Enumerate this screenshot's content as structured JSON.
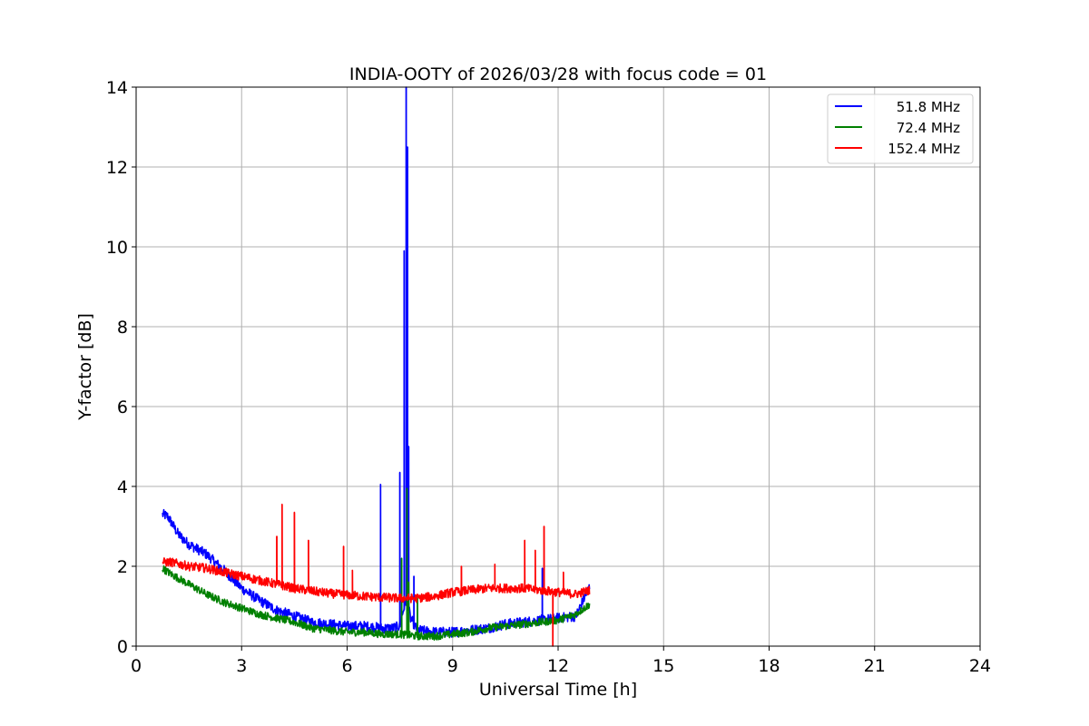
{
  "chart_data": {
    "type": "line",
    "title": "INDIA-OOTY of 2026/03/28 with focus code = 01",
    "xlabel": "Universal Time [h]",
    "ylabel": "Y-factor [dB]",
    "xlim": [
      0,
      24
    ],
    "ylim": [
      0,
      14
    ],
    "xticks": [
      0,
      3,
      6,
      9,
      12,
      15,
      18,
      21,
      24
    ],
    "yticks": [
      0,
      2,
      4,
      6,
      8,
      10,
      12,
      14
    ],
    "grid": true,
    "legend_position": "top-right",
    "series": [
      {
        "name": "51.8 MHz",
        "color": "#0000ff",
        "noise": 0.08,
        "x": [
          0.75,
          0.9,
          1.0,
          1.2,
          1.5,
          2.0,
          2.5,
          3.0,
          3.5,
          4.0,
          4.5,
          5.0,
          5.5,
          6.0,
          6.5,
          7.0,
          7.3,
          7.5,
          7.6,
          7.7,
          7.8,
          8.0,
          8.5,
          9.0,
          9.5,
          10.0,
          10.5,
          11.0,
          11.5,
          12.0,
          12.5,
          12.9
        ],
        "y": [
          3.3,
          3.25,
          3.1,
          2.8,
          2.55,
          2.3,
          1.9,
          1.45,
          1.15,
          0.9,
          0.75,
          0.6,
          0.55,
          0.5,
          0.5,
          0.45,
          0.45,
          0.5,
          0.9,
          1.2,
          0.7,
          0.4,
          0.35,
          0.35,
          0.4,
          0.45,
          0.55,
          0.6,
          0.65,
          0.7,
          0.75,
          1.5
        ],
        "spikes": [
          [
            6.95,
            4.05
          ],
          [
            7.5,
            4.35
          ],
          [
            7.62,
            9.9
          ],
          [
            7.68,
            14.0
          ],
          [
            7.72,
            12.5
          ],
          [
            7.75,
            5.0
          ],
          [
            7.9,
            1.75
          ],
          [
            11.55,
            1.95
          ]
        ]
      },
      {
        "name": "72.4 MHz",
        "color": "#008000",
        "noise": 0.06,
        "x": [
          0.75,
          1.0,
          1.5,
          2.0,
          2.5,
          3.0,
          3.5,
          4.0,
          4.5,
          5.0,
          5.5,
          6.0,
          6.5,
          7.0,
          7.5,
          8.0,
          8.5,
          9.0,
          9.5,
          10.0,
          10.5,
          11.0,
          11.5,
          12.0,
          12.5,
          12.9
        ],
        "y": [
          1.95,
          1.8,
          1.55,
          1.3,
          1.1,
          0.95,
          0.8,
          0.7,
          0.6,
          0.45,
          0.4,
          0.35,
          0.35,
          0.3,
          0.3,
          0.25,
          0.25,
          0.3,
          0.35,
          0.45,
          0.5,
          0.55,
          0.6,
          0.65,
          0.8,
          1.05
        ],
        "spikes": [
          [
            7.55,
            2.2
          ],
          [
            7.7,
            3.95
          ],
          [
            7.75,
            1.6
          ],
          [
            8.0,
            1.2
          ]
        ]
      },
      {
        "name": "152.4 MHz",
        "color": "#ff0000",
        "noise": 0.07,
        "x": [
          0.75,
          1.0,
          1.5,
          2.0,
          2.5,
          3.0,
          3.5,
          4.0,
          4.5,
          5.0,
          5.5,
          6.0,
          6.5,
          7.0,
          7.5,
          8.0,
          8.5,
          9.0,
          9.5,
          10.0,
          10.5,
          11.0,
          11.5,
          12.0,
          12.5,
          12.9
        ],
        "y": [
          2.1,
          2.1,
          2.0,
          1.95,
          1.85,
          1.75,
          1.65,
          1.55,
          1.45,
          1.38,
          1.32,
          1.28,
          1.25,
          1.22,
          1.2,
          1.2,
          1.25,
          1.35,
          1.4,
          1.45,
          1.45,
          1.45,
          1.4,
          1.35,
          1.3,
          1.4
        ],
        "spikes": [
          [
            4.0,
            2.75
          ],
          [
            4.15,
            3.55
          ],
          [
            4.5,
            3.35
          ],
          [
            4.9,
            2.65
          ],
          [
            5.9,
            2.5
          ],
          [
            6.15,
            1.9
          ],
          [
            9.25,
            2.0
          ],
          [
            10.2,
            2.05
          ],
          [
            11.05,
            2.65
          ],
          [
            11.35,
            2.4
          ],
          [
            11.6,
            3.0
          ],
          [
            11.85,
            0.0
          ],
          [
            12.15,
            1.85
          ]
        ]
      }
    ]
  }
}
